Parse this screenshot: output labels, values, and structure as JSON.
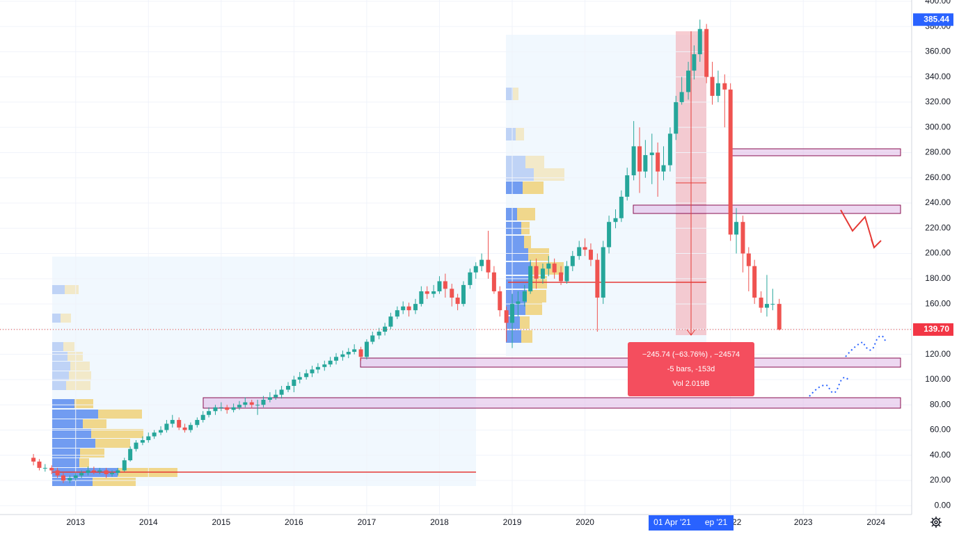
{
  "chart_data": {
    "type": "candlestick",
    "x": [
      2012.42,
      2012.5,
      2012.58,
      2012.67,
      2012.75,
      2012.83,
      2012.92,
      2013.0,
      2013.08,
      2013.17,
      2013.25,
      2013.33,
      2013.42,
      2013.5,
      2013.58,
      2013.67,
      2013.75,
      2013.83,
      2013.92,
      2014.0,
      2014.08,
      2014.17,
      2014.25,
      2014.33,
      2014.42,
      2014.5,
      2014.58,
      2014.67,
      2014.75,
      2014.83,
      2014.92,
      2015.0,
      2015.08,
      2015.17,
      2015.25,
      2015.33,
      2015.42,
      2015.5,
      2015.58,
      2015.67,
      2015.75,
      2015.83,
      2015.92,
      2016.0,
      2016.08,
      2016.17,
      2016.25,
      2016.33,
      2016.42,
      2016.5,
      2016.58,
      2016.67,
      2016.75,
      2016.83,
      2016.92,
      2017.0,
      2017.08,
      2017.17,
      2017.25,
      2017.33,
      2017.42,
      2017.5,
      2017.58,
      2017.67,
      2017.75,
      2017.83,
      2017.92,
      2018.0,
      2018.08,
      2018.17,
      2018.25,
      2018.33,
      2018.42,
      2018.5,
      2018.58,
      2018.67,
      2018.75,
      2018.83,
      2018.92,
      2019.0,
      2019.08,
      2019.17,
      2019.25,
      2019.33,
      2019.42,
      2019.5,
      2019.58,
      2019.67,
      2019.75,
      2019.83,
      2019.92,
      2020.0,
      2020.08,
      2020.17,
      2020.25,
      2020.33,
      2020.42,
      2020.5,
      2020.58,
      2020.67,
      2020.75,
      2020.83,
      2020.92,
      2021.0,
      2021.08,
      2021.17,
      2021.25,
      2021.33,
      2021.42,
      2021.5,
      2021.58,
      2021.67,
      2021.75,
      2021.83,
      2021.92,
      2022.0,
      2022.08,
      2022.17,
      2022.25,
      2022.33,
      2022.42,
      2022.5,
      2022.58,
      2022.67
    ],
    "open": [
      38,
      35,
      30,
      30,
      28,
      24,
      20,
      22,
      24,
      26,
      28,
      27,
      28,
      25,
      26,
      28,
      36,
      45,
      50,
      52,
      55,
      58,
      60,
      65,
      68,
      62,
      60,
      64,
      68,
      72,
      75,
      78,
      78,
      76,
      78,
      80,
      82,
      80,
      80,
      84,
      86,
      88,
      92,
      95,
      100,
      102,
      105,
      108,
      110,
      112,
      115,
      118,
      120,
      122,
      124,
      118,
      130,
      135,
      138,
      142,
      150,
      155,
      158,
      155,
      160,
      170,
      168,
      170,
      178,
      172,
      165,
      160,
      175,
      185,
      190,
      195,
      185,
      170,
      155,
      145,
      160,
      162,
      170,
      190,
      180,
      188,
      192,
      185,
      178,
      190,
      198,
      205,
      203,
      195,
      165,
      205,
      225,
      228,
      245,
      262,
      285,
      265,
      278,
      280,
      265,
      270,
      295,
      320,
      328,
      345,
      358,
      378,
      340,
      325,
      335,
      330,
      215,
      225,
      200,
      190,
      165,
      157,
      160,
      160
    ],
    "high": [
      41,
      37,
      33,
      32,
      30,
      26,
      24,
      26,
      28,
      31,
      31,
      30,
      30,
      28,
      30,
      38,
      47,
      52,
      55,
      58,
      60,
      63,
      68,
      72,
      70,
      65,
      66,
      70,
      75,
      78,
      80,
      82,
      80,
      81,
      83,
      86,
      84,
      84,
      87,
      90,
      92,
      95,
      98,
      103,
      106,
      108,
      111,
      113,
      115,
      118,
      121,
      123,
      125,
      128,
      126,
      132,
      138,
      141,
      145,
      153,
      158,
      162,
      161,
      164,
      174,
      174,
      175,
      182,
      184,
      176,
      168,
      178,
      188,
      193,
      200,
      218,
      190,
      174,
      158,
      168,
      170,
      175,
      195,
      196,
      192,
      198,
      196,
      190,
      194,
      202,
      210,
      212,
      208,
      200,
      210,
      230,
      235,
      250,
      268,
      305,
      300,
      290,
      295,
      288,
      285,
      300,
      325,
      340,
      352,
      365,
      385.44,
      382,
      352,
      345,
      342,
      335,
      236,
      230,
      205,
      195,
      170,
      183,
      172,
      164
    ],
    "low": [
      32,
      28,
      27,
      25,
      22,
      18,
      18,
      20,
      22,
      24,
      25,
      25,
      22,
      23,
      24,
      27,
      35,
      43,
      48,
      50,
      53,
      56,
      58,
      62,
      60,
      58,
      58,
      62,
      66,
      70,
      72,
      75,
      73,
      74,
      76,
      78,
      77,
      72,
      78,
      82,
      84,
      85,
      90,
      90,
      97,
      100,
      102,
      105,
      107,
      110,
      112,
      115,
      117,
      120,
      115,
      116,
      128,
      132,
      135,
      140,
      148,
      152,
      150,
      152,
      158,
      164,
      165,
      168,
      165,
      158,
      155,
      158,
      172,
      180,
      186,
      180,
      168,
      150,
      130,
      125,
      150,
      158,
      168,
      172,
      176,
      182,
      180,
      175,
      176,
      186,
      195,
      198,
      190,
      138,
      160,
      200,
      220,
      225,
      242,
      258,
      248,
      260,
      255,
      245,
      258,
      265,
      290,
      318,
      322,
      338,
      352,
      335,
      318,
      320,
      300,
      210,
      200,
      185,
      170,
      160,
      153,
      150,
      155,
      139
    ],
    "close": [
      35,
      30,
      30,
      28,
      24,
      20,
      22,
      24,
      26,
      28,
      27,
      28,
      25,
      26,
      28,
      36,
      45,
      50,
      52,
      55,
      58,
      60,
      65,
      68,
      62,
      60,
      64,
      68,
      72,
      75,
      78,
      78,
      76,
      78,
      80,
      82,
      80,
      80,
      84,
      86,
      88,
      92,
      95,
      100,
      102,
      105,
      108,
      110,
      112,
      115,
      118,
      120,
      122,
      124,
      118,
      130,
      135,
      138,
      142,
      150,
      155,
      158,
      155,
      160,
      170,
      168,
      170,
      178,
      172,
      165,
      160,
      175,
      185,
      190,
      195,
      185,
      170,
      155,
      145,
      160,
      162,
      170,
      190,
      180,
      188,
      192,
      185,
      178,
      190,
      198,
      205,
      203,
      195,
      165,
      205,
      225,
      228,
      245,
      262,
      285,
      265,
      278,
      280,
      265,
      270,
      295,
      320,
      328,
      345,
      358,
      378,
      340,
      325,
      335,
      330,
      215,
      225,
      200,
      190,
      165,
      157,
      160,
      160,
      139.7
    ],
    "up_color": "#26a69a",
    "down_color": "#ef5350",
    "xlim": [
      2011.96,
      2024.49
    ],
    "ylim": [
      -7,
      401
    ],
    "xticks": [
      2013,
      2014,
      2015,
      2016,
      2017,
      2018,
      2019,
      2020,
      {
        "value": 2022,
        "label": "22"
      },
      2023,
      2024
    ],
    "yticks": [
      {
        "value": 0,
        "label": "0.00"
      },
      {
        "value": 20,
        "label": "20.00"
      },
      {
        "value": 40,
        "label": "40.00"
      },
      {
        "value": 60,
        "label": "60.00"
      },
      {
        "value": 80,
        "label": "80.00"
      },
      {
        "value": 100,
        "label": "100.00"
      },
      {
        "value": 120,
        "label": "120.00"
      },
      {
        "value": 140,
        "label": "140.00"
      },
      {
        "value": 160,
        "label": "160.00"
      },
      {
        "value": 180,
        "label": "180.00"
      },
      {
        "value": 200,
        "label": "200.00"
      },
      {
        "value": 220,
        "label": "220.00"
      },
      {
        "value": 240,
        "label": "240.00"
      },
      {
        "value": 260,
        "label": "260.00"
      },
      {
        "value": 280,
        "label": "280.00"
      },
      {
        "value": 300,
        "label": "300.00"
      },
      {
        "value": 320,
        "label": "320.00"
      },
      {
        "value": 340,
        "label": "340.00"
      },
      {
        "value": 360,
        "label": "360.00"
      },
      {
        "value": 380,
        "label": "380.00"
      },
      {
        "value": 400,
        "label": "400.00"
      }
    ],
    "grid": true,
    "high_price": {
      "value": 385.44,
      "label": "385.44"
    },
    "last_price": {
      "value": 139.7,
      "label": "139.70"
    },
    "measure": {
      "change": "−245.74 (−63.76%) , −24574",
      "bars": "-5 bars, -153d",
      "volume": "Vol 2.019B"
    },
    "crosshair_x_labels": [
      "01 Apr '21",
      "ep '21"
    ]
  }
}
